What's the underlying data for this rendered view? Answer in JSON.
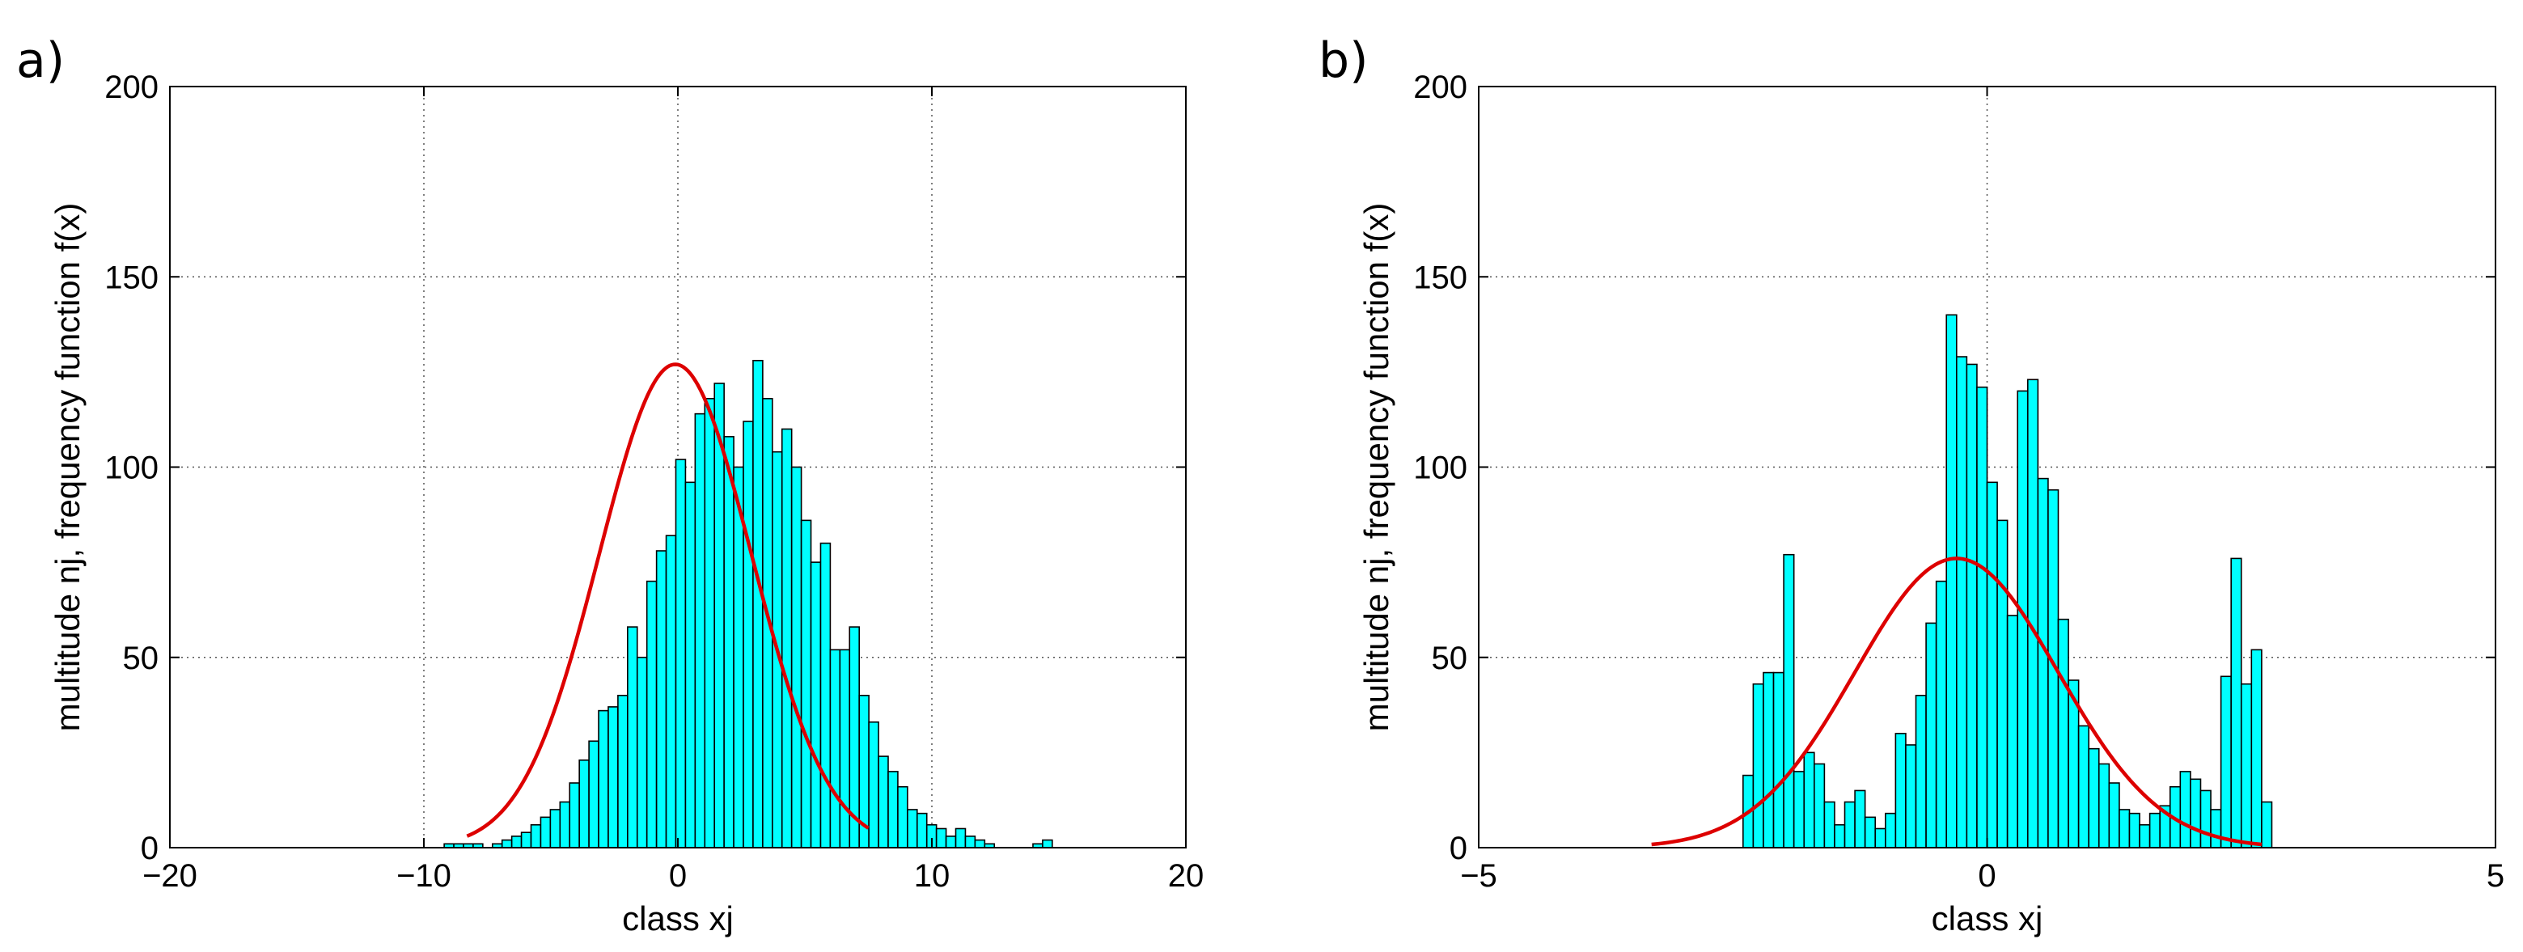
{
  "chart_data": [
    {
      "panel_label": "a)",
      "type": "bar",
      "title": "",
      "xlabel": "class xj",
      "ylabel": "multitude nj, frequency function f(x)",
      "xlim": [
        -20,
        20
      ],
      "ylim": [
        0,
        200
      ],
      "xticks": [
        -20,
        -10,
        0,
        10,
        20
      ],
      "xtick_labels": [
        "−20",
        "−10",
        "0",
        "10",
        "20"
      ],
      "yticks": [
        0,
        50,
        100,
        150,
        200
      ],
      "ytick_labels": [
        "0",
        "50",
        "100",
        "150",
        "200"
      ],
      "grid": true,
      "bar_color": "#00FFFF",
      "edge_color": "#000000",
      "curve_color": "#DD0000",
      "histogram": {
        "x_start": -9.2,
        "bin_width": 0.38,
        "counts": [
          1,
          1,
          1,
          1,
          0,
          1,
          2,
          3,
          4,
          6,
          8,
          10,
          12,
          17,
          23,
          28,
          36,
          37,
          40,
          58,
          50,
          70,
          78,
          82,
          102,
          96,
          114,
          118,
          122,
          108,
          100,
          112,
          128,
          118,
          104,
          110,
          100,
          86,
          75,
          80,
          52,
          52,
          58,
          40,
          33,
          24,
          20,
          16,
          10,
          9,
          6,
          5,
          3,
          5,
          3,
          2,
          1,
          0,
          0,
          0,
          0,
          1,
          2
        ]
      },
      "normal_fit": {
        "mean": -0.1,
        "sd": 3.0,
        "peak": 127,
        "x_range": [
          -8.3,
          7.5
        ]
      }
    },
    {
      "panel_label": "b)",
      "type": "bar",
      "title": "",
      "xlabel": "class xj",
      "ylabel": "multitude nj, frequency function f(x)",
      "xlim": [
        -5,
        5
      ],
      "ylim": [
        0,
        200
      ],
      "xticks": [
        -5,
        0,
        5
      ],
      "xtick_labels": [
        "−5",
        "0",
        "5"
      ],
      "yticks": [
        0,
        50,
        100,
        150,
        200
      ],
      "ytick_labels": [
        "0",
        "50",
        "100",
        "150",
        "200"
      ],
      "grid": true,
      "bar_color": "#00FFFF",
      "edge_color": "#000000",
      "curve_color": "#DD0000",
      "histogram": {
        "x_start": -2.4,
        "bin_width": 0.1,
        "counts": [
          19,
          43,
          46,
          46,
          77,
          20,
          25,
          22,
          12,
          6,
          12,
          15,
          8,
          5,
          9,
          30,
          27,
          40,
          59,
          70,
          140,
          129,
          127,
          121,
          96,
          86,
          61,
          120,
          123,
          97,
          94,
          60,
          44,
          32,
          26,
          22,
          17,
          10,
          9,
          6,
          9,
          11,
          16,
          20,
          18,
          15,
          10,
          45,
          76,
          43,
          52,
          12
        ]
      },
      "normal_fit": {
        "mean": -0.3,
        "sd": 1.0,
        "peak": 76,
        "x_range": [
          -3.3,
          2.7
        ]
      }
    }
  ]
}
